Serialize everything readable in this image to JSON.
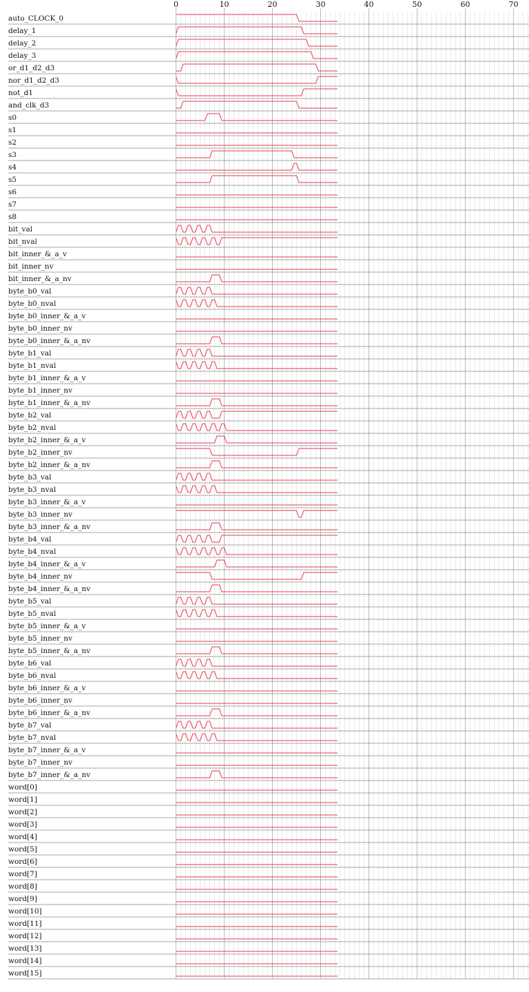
{
  "chart_data": {
    "type": "line",
    "title": "",
    "xlabel": "",
    "ylabel": "",
    "x_ticks": [
      "0",
      "10",
      "20",
      "30",
      "40",
      "50",
      "60",
      "70"
    ],
    "xlim": [
      0,
      73
    ],
    "data_end": 33.5,
    "grid": true,
    "wave_color": "#e8384f",
    "grid_major_color": "#b9b9b9",
    "grid_minor_color": "#dedede",
    "row_line_color": "#888888",
    "signals": [
      {
        "name": "auto_CLOCK_0",
        "init": 1,
        "tr": [
          [
            25,
            0
          ]
        ]
      },
      {
        "name": "delay_1",
        "init": 0,
        "tr": [
          [
            0,
            1
          ],
          [
            26,
            0
          ]
        ]
      },
      {
        "name": "delay_2",
        "init": 0,
        "tr": [
          [
            0,
            1
          ],
          [
            27,
            0
          ]
        ]
      },
      {
        "name": "delay_3",
        "init": 0,
        "tr": [
          [
            0,
            1
          ],
          [
            28,
            0
          ]
        ]
      },
      {
        "name": "or_d1_d2_d3",
        "init": 0,
        "tr": [
          [
            1,
            1
          ],
          [
            29,
            0
          ]
        ]
      },
      {
        "name": "nor_d1_d2_d3",
        "init": 1,
        "tr": [
          [
            0,
            0
          ],
          [
            1,
            0
          ],
          [
            29,
            1
          ]
        ]
      },
      {
        "name": "not_d1",
        "init": 1,
        "tr": [
          [
            0,
            0
          ],
          [
            26,
            1
          ]
        ]
      },
      {
        "name": "and_clk_d3",
        "init": 0,
        "tr": [
          [
            1,
            1
          ],
          [
            25,
            0
          ]
        ]
      },
      {
        "name": "s0",
        "init": 0,
        "tr": [
          [
            6,
            1
          ],
          [
            9,
            0
          ]
        ]
      },
      {
        "name": "s1",
        "init": 0,
        "tr": []
      },
      {
        "name": "s2",
        "init": 0,
        "tr": []
      },
      {
        "name": "s3",
        "init": 0,
        "tr": [
          [
            7,
            1
          ],
          [
            24,
            0
          ]
        ]
      },
      {
        "name": "s4",
        "init": 0,
        "tr": [
          [
            24,
            1
          ],
          [
            25,
            0
          ]
        ]
      },
      {
        "name": "s5",
        "init": 0,
        "tr": [
          [
            7,
            1
          ],
          [
            25,
            0
          ]
        ]
      },
      {
        "name": "s6",
        "init": 0,
        "tr": []
      },
      {
        "name": "s7",
        "init": 0,
        "tr": []
      },
      {
        "name": "s8",
        "init": 0,
        "tr": []
      },
      {
        "name": "bit_val",
        "init": 0,
        "tr": [
          [
            0,
            1
          ],
          [
            1,
            0
          ],
          [
            2,
            1
          ],
          [
            3,
            0
          ],
          [
            4,
            1
          ],
          [
            5,
            0
          ],
          [
            6,
            1
          ],
          [
            7,
            0
          ]
        ]
      },
      {
        "name": "bit_nval",
        "init": 1,
        "tr": [
          [
            0,
            0
          ],
          [
            1,
            1
          ],
          [
            2,
            0
          ],
          [
            3,
            1
          ],
          [
            4,
            0
          ],
          [
            5,
            1
          ],
          [
            6,
            0
          ],
          [
            7,
            1
          ],
          [
            8,
            0
          ],
          [
            9,
            1
          ]
        ]
      },
      {
        "name": "bit_inner_&_a_v",
        "init": 0,
        "tr": []
      },
      {
        "name": "bit_inner_nv",
        "init": 0,
        "tr": []
      },
      {
        "name": "bit_inner_&_a_nv",
        "init": 0,
        "tr": [
          [
            7,
            1
          ],
          [
            9,
            0
          ]
        ]
      },
      {
        "name": "byte_b0_val",
        "init": 0,
        "tr": [
          [
            0,
            1
          ],
          [
            1,
            0
          ],
          [
            2,
            1
          ],
          [
            3,
            0
          ],
          [
            4,
            1
          ],
          [
            5,
            0
          ],
          [
            6,
            1
          ],
          [
            7,
            0
          ]
        ]
      },
      {
        "name": "byte_b0_nval",
        "init": 1,
        "tr": [
          [
            0,
            0
          ],
          [
            1,
            1
          ],
          [
            2,
            0
          ],
          [
            3,
            1
          ],
          [
            4,
            0
          ],
          [
            5,
            1
          ],
          [
            6,
            0
          ],
          [
            7,
            1
          ],
          [
            8,
            0
          ]
        ]
      },
      {
        "name": "byte_b0_inner_&_a_v",
        "init": 0,
        "tr": []
      },
      {
        "name": "byte_b0_inner_nv",
        "init": 0,
        "tr": []
      },
      {
        "name": "byte_b0_inner_&_a_nv",
        "init": 0,
        "tr": [
          [
            7,
            1
          ],
          [
            9,
            0
          ]
        ]
      },
      {
        "name": "byte_b1_val",
        "init": 0,
        "tr": [
          [
            0,
            1
          ],
          [
            1,
            0
          ],
          [
            2,
            1
          ],
          [
            3,
            0
          ],
          [
            4,
            1
          ],
          [
            5,
            0
          ],
          [
            6,
            1
          ],
          [
            7,
            0
          ]
        ]
      },
      {
        "name": "byte_b1_nval",
        "init": 1,
        "tr": [
          [
            0,
            0
          ],
          [
            1,
            1
          ],
          [
            2,
            0
          ],
          [
            3,
            1
          ],
          [
            4,
            0
          ],
          [
            5,
            1
          ],
          [
            6,
            0
          ],
          [
            7,
            1
          ],
          [
            8,
            0
          ]
        ]
      },
      {
        "name": "byte_b1_inner_&_a_v",
        "init": 0,
        "tr": []
      },
      {
        "name": "byte_b1_inner_nv",
        "init": 0,
        "tr": []
      },
      {
        "name": "byte_b1_inner_&_a_nv",
        "init": 0,
        "tr": [
          [
            7,
            1
          ],
          [
            9,
            0
          ]
        ]
      },
      {
        "name": "byte_b2_val",
        "init": 0,
        "tr": [
          [
            0,
            1
          ],
          [
            1,
            0
          ],
          [
            2,
            1
          ],
          [
            3,
            0
          ],
          [
            4,
            1
          ],
          [
            5,
            0
          ],
          [
            6,
            1
          ],
          [
            7,
            0
          ],
          [
            9,
            1
          ]
        ]
      },
      {
        "name": "byte_b2_nval",
        "init": 1,
        "tr": [
          [
            0,
            0
          ],
          [
            1,
            1
          ],
          [
            2,
            0
          ],
          [
            3,
            1
          ],
          [
            4,
            0
          ],
          [
            5,
            1
          ],
          [
            6,
            0
          ],
          [
            7,
            1
          ],
          [
            8,
            0
          ],
          [
            9,
            1
          ],
          [
            10,
            0
          ]
        ]
      },
      {
        "name": "byte_b2_inner_&_a_v",
        "init": 0,
        "tr": [
          [
            8,
            1
          ],
          [
            10,
            0
          ]
        ]
      },
      {
        "name": "byte_b2_inner_nv",
        "init": 1,
        "tr": [
          [
            7,
            0
          ],
          [
            25,
            1
          ]
        ]
      },
      {
        "name": "byte_b2_inner_&_a_nv",
        "init": 0,
        "tr": [
          [
            7,
            1
          ],
          [
            9,
            0
          ]
        ]
      },
      {
        "name": "byte_b3_val",
        "init": 0,
        "tr": [
          [
            0,
            1
          ],
          [
            1,
            0
          ],
          [
            2,
            1
          ],
          [
            3,
            0
          ],
          [
            4,
            1
          ],
          [
            5,
            0
          ],
          [
            6,
            1
          ],
          [
            7,
            0
          ]
        ]
      },
      {
        "name": "byte_b3_nval",
        "init": 1,
        "tr": [
          [
            0,
            0
          ],
          [
            1,
            1
          ],
          [
            2,
            0
          ],
          [
            3,
            1
          ],
          [
            4,
            0
          ],
          [
            5,
            1
          ],
          [
            6,
            0
          ],
          [
            7,
            1
          ],
          [
            8,
            0
          ]
        ]
      },
      {
        "name": "byte_b3_inner_&_a_v",
        "init": 0,
        "tr": []
      },
      {
        "name": "byte_b3_inner_nv",
        "init": 1,
        "tr": [
          [
            25,
            0
          ],
          [
            26,
            1
          ]
        ]
      },
      {
        "name": "byte_b3_inner_&_a_nv",
        "init": 0,
        "tr": [
          [
            7,
            1
          ],
          [
            9,
            0
          ]
        ]
      },
      {
        "name": "byte_b4_val",
        "init": 0,
        "tr": [
          [
            0,
            1
          ],
          [
            1,
            0
          ],
          [
            2,
            1
          ],
          [
            3,
            0
          ],
          [
            4,
            1
          ],
          [
            5,
            0
          ],
          [
            6,
            1
          ],
          [
            7,
            0
          ],
          [
            9,
            1
          ]
        ]
      },
      {
        "name": "byte_b4_nval",
        "init": 1,
        "tr": [
          [
            0,
            0
          ],
          [
            1,
            1
          ],
          [
            2,
            0
          ],
          [
            3,
            1
          ],
          [
            4,
            0
          ],
          [
            5,
            1
          ],
          [
            6,
            0
          ],
          [
            7,
            1
          ],
          [
            8,
            0
          ],
          [
            9,
            1
          ],
          [
            10,
            0
          ]
        ]
      },
      {
        "name": "byte_b4_inner_&_a_v",
        "init": 0,
        "tr": [
          [
            8,
            1
          ],
          [
            10,
            0
          ]
        ]
      },
      {
        "name": "byte_b4_inner_nv",
        "init": 1,
        "tr": [
          [
            7,
            0
          ],
          [
            26,
            1
          ]
        ]
      },
      {
        "name": "byte_b4_inner_&_a_nv",
        "init": 0,
        "tr": [
          [
            7,
            1
          ],
          [
            9,
            0
          ]
        ]
      },
      {
        "name": "byte_b5_val",
        "init": 0,
        "tr": [
          [
            0,
            1
          ],
          [
            1,
            0
          ],
          [
            2,
            1
          ],
          [
            3,
            0
          ],
          [
            4,
            1
          ],
          [
            5,
            0
          ],
          [
            6,
            1
          ],
          [
            7,
            0
          ]
        ]
      },
      {
        "name": "byte_b5_nval",
        "init": 1,
        "tr": [
          [
            0,
            0
          ],
          [
            1,
            1
          ],
          [
            2,
            0
          ],
          [
            3,
            1
          ],
          [
            4,
            0
          ],
          [
            5,
            1
          ],
          [
            6,
            0
          ],
          [
            7,
            1
          ],
          [
            8,
            0
          ]
        ]
      },
      {
        "name": "byte_b5_inner_&_a_v",
        "init": 0,
        "tr": []
      },
      {
        "name": "byte_b5_inner_nv",
        "init": 0,
        "tr": []
      },
      {
        "name": "byte_b5_inner_&_a_nv",
        "init": 0,
        "tr": [
          [
            7,
            1
          ],
          [
            9,
            0
          ]
        ]
      },
      {
        "name": "byte_b6_val",
        "init": 0,
        "tr": [
          [
            0,
            1
          ],
          [
            1,
            0
          ],
          [
            2,
            1
          ],
          [
            3,
            0
          ],
          [
            4,
            1
          ],
          [
            5,
            0
          ],
          [
            6,
            1
          ],
          [
            7,
            0
          ]
        ]
      },
      {
        "name": "byte_b6_nval",
        "init": 1,
        "tr": [
          [
            0,
            0
          ],
          [
            1,
            1
          ],
          [
            2,
            0
          ],
          [
            3,
            1
          ],
          [
            4,
            0
          ],
          [
            5,
            1
          ],
          [
            6,
            0
          ],
          [
            7,
            1
          ],
          [
            8,
            0
          ]
        ]
      },
      {
        "name": "byte_b6_inner_&_a_v",
        "init": 0,
        "tr": []
      },
      {
        "name": "byte_b6_inner_nv",
        "init": 0,
        "tr": []
      },
      {
        "name": "byte_b6_inner_&_a_nv",
        "init": 0,
        "tr": [
          [
            7,
            1
          ],
          [
            9,
            0
          ]
        ]
      },
      {
        "name": "byte_b7_val",
        "init": 0,
        "tr": [
          [
            0,
            1
          ],
          [
            1,
            0
          ],
          [
            2,
            1
          ],
          [
            3,
            0
          ],
          [
            4,
            1
          ],
          [
            5,
            0
          ],
          [
            6,
            1
          ],
          [
            7,
            0
          ]
        ]
      },
      {
        "name": "byte_b7_nval",
        "init": 1,
        "tr": [
          [
            0,
            0
          ],
          [
            1,
            1
          ],
          [
            2,
            0
          ],
          [
            3,
            1
          ],
          [
            4,
            0
          ],
          [
            5,
            1
          ],
          [
            6,
            0
          ],
          [
            7,
            1
          ],
          [
            8,
            0
          ]
        ]
      },
      {
        "name": "byte_b7_inner_&_a_v",
        "init": 0,
        "tr": []
      },
      {
        "name": "byte_b7_inner_nv",
        "init": 0,
        "tr": []
      },
      {
        "name": "byte_b7_inner_&_a_nv",
        "init": 0,
        "tr": [
          [
            7,
            1
          ],
          [
            9,
            0
          ]
        ]
      },
      {
        "name": "word[0]",
        "init": 0,
        "tr": []
      },
      {
        "name": "word[1]",
        "init": 0,
        "tr": []
      },
      {
        "name": "word[2]",
        "init": 0,
        "tr": []
      },
      {
        "name": "word[3]",
        "init": 0,
        "tr": []
      },
      {
        "name": "word[4]",
        "init": 0,
        "tr": []
      },
      {
        "name": "word[5]",
        "init": 0,
        "tr": []
      },
      {
        "name": "word[6]",
        "init": 0,
        "tr": []
      },
      {
        "name": "word[7]",
        "init": 0,
        "tr": []
      },
      {
        "name": "word[8]",
        "init": 0,
        "tr": []
      },
      {
        "name": "word[9]",
        "init": 0,
        "tr": []
      },
      {
        "name": "word[10]",
        "init": 0,
        "tr": []
      },
      {
        "name": "word[11]",
        "init": 0,
        "tr": []
      },
      {
        "name": "word[12]",
        "init": 0,
        "tr": []
      },
      {
        "name": "word[13]",
        "init": 0,
        "tr": []
      },
      {
        "name": "word[14]",
        "init": 0,
        "tr": []
      },
      {
        "name": "word[15]",
        "init": 0,
        "tr": []
      }
    ]
  }
}
